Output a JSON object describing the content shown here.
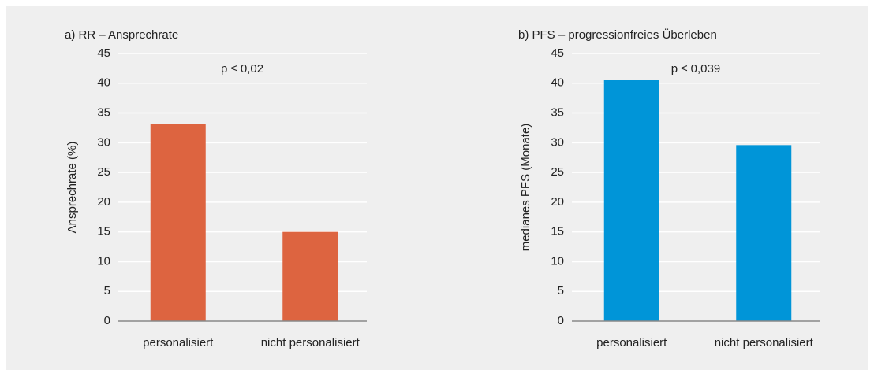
{
  "chart_data": [
    {
      "type": "bar",
      "title": "a) RR – Ansprechrate",
      "ylabel": "Ansprechrate (%)",
      "categories": [
        "personalisiert",
        "nicht personalisiert"
      ],
      "values": [
        33.2,
        15
      ],
      "color": "#dd6440",
      "annotation": "p ≤ 0,02",
      "ylim": [
        0,
        45
      ],
      "yticks": [
        0,
        5,
        10,
        15,
        20,
        25,
        30,
        35,
        40,
        45
      ],
      "grid": true
    },
    {
      "type": "bar",
      "title": "b) PFS – progressionfreies Überleben",
      "ylabel": "medianes PFS (Monate)",
      "categories": [
        "personalisiert",
        "nicht personalisiert"
      ],
      "values": [
        40.5,
        29.6
      ],
      "color": "#0095d8",
      "annotation": "p ≤ 0,039",
      "ylim": [
        0,
        45
      ],
      "yticks": [
        0,
        5,
        10,
        15,
        20,
        25,
        30,
        35,
        40,
        45
      ],
      "grid": true
    }
  ]
}
